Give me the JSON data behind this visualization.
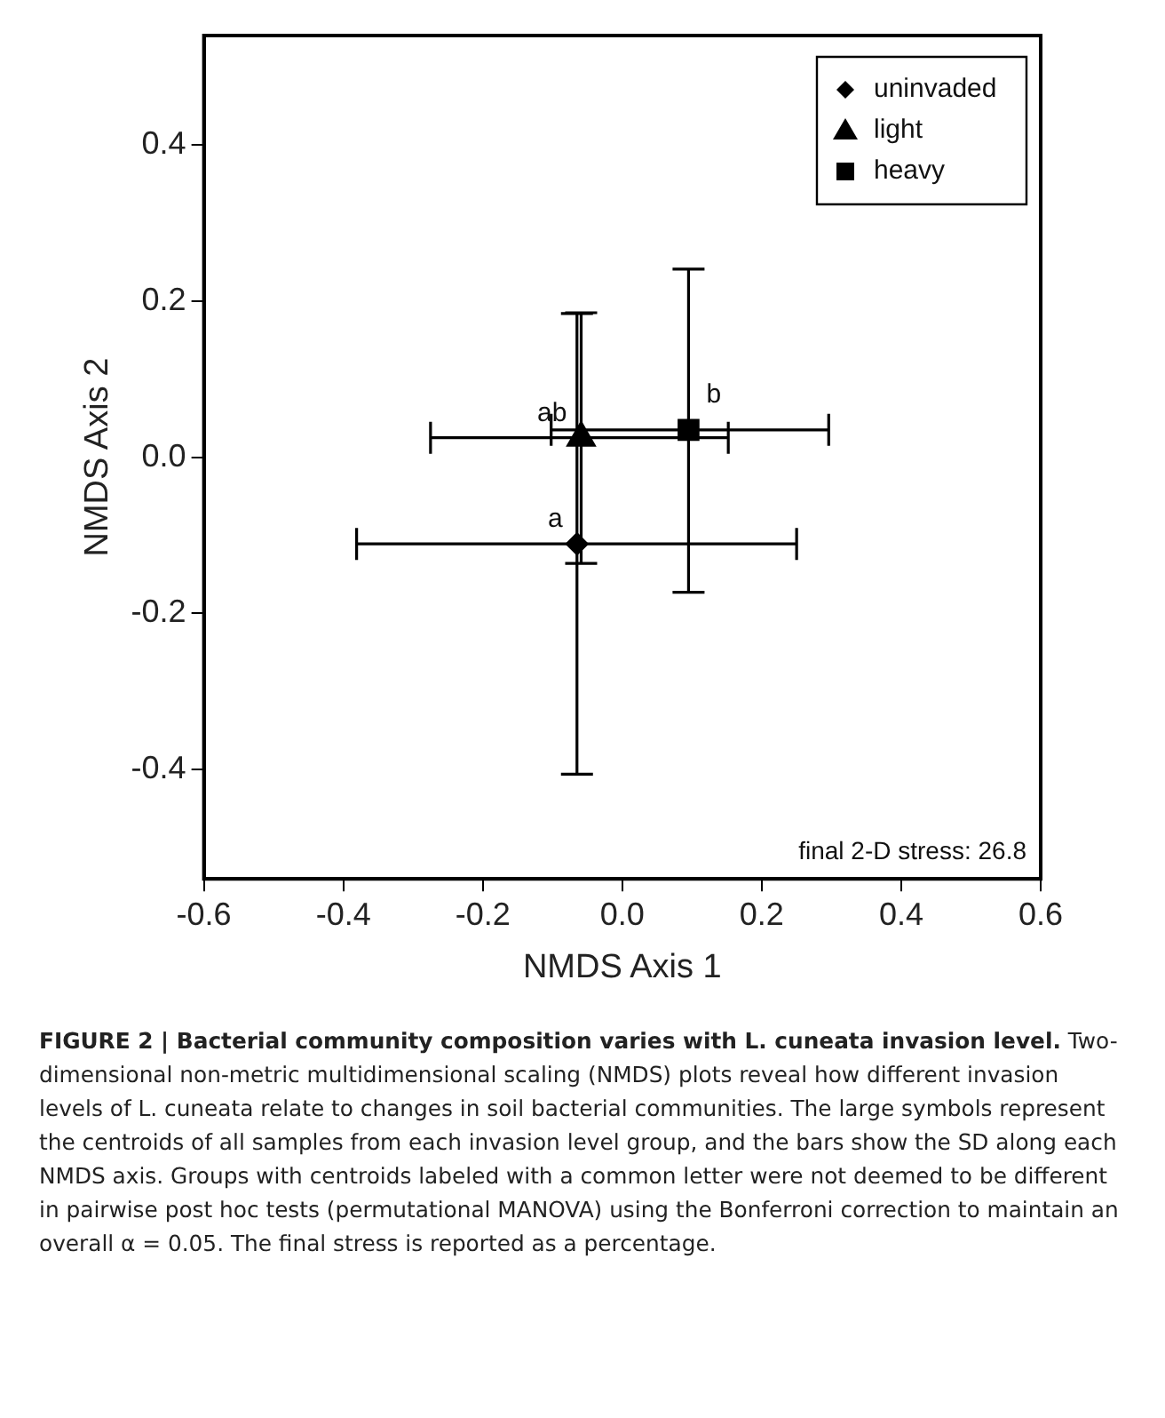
{
  "chart_data": {
    "type": "scatter",
    "title": "FIGURE 2 | Bacterial community composition varies with L. cuneata invasion level.",
    "xlabel": "NMDS Axis 1",
    "ylabel": "NMDS Axis 2",
    "xlim": [
      -0.6,
      0.6
    ],
    "xticks": [
      -0.6,
      -0.4,
      -0.2,
      {
        "value": 0,
        "label": "0.0"
      },
      0.2,
      0.4,
      0.6
    ],
    "ylim": [
      -0.54,
      0.54
    ],
    "yticks": [
      -0.4,
      -0.2,
      {
        "value": 0,
        "label": "0.0"
      },
      0.2,
      0.4
    ],
    "grid": false,
    "legend": "top right",
    "series": [
      {
        "name": "uninvaded",
        "color": "#000000",
        "marker": "diamond",
        "x": [
          -0.065
        ],
        "values": [
          -0.111
        ],
        "errors": [
          [
            -0.406,
            0.184
          ]
        ],
        "xerrors": [
          [
            -0.381,
            0.25
          ]
        ]
      },
      {
        "name": "light",
        "color": "#000000",
        "marker": "triangle",
        "x": [
          -0.059
        ],
        "values": [
          0.025
        ],
        "errors": [
          [
            -0.136,
            0.185
          ]
        ],
        "xerrors": [
          [
            -0.275,
            0.152
          ]
        ]
      },
      {
        "name": "heavy",
        "color": "#000000",
        "marker": "square",
        "x": [
          0.095
        ],
        "values": [
          0.035
        ],
        "errors": [
          [
            -0.173,
            0.241
          ]
        ],
        "xerrors": [
          [
            -0.102,
            0.296
          ]
        ]
      }
    ],
    "annotations": [
      {
        "text": "a",
        "x": -0.065,
        "y": -0.111
      },
      {
        "text": "ab",
        "x": -0.059,
        "y": 0.025
      },
      {
        "text": "b",
        "x": 0.095,
        "y": 0.035
      },
      "final 2-D stress: 26.8",
      "Two-dimensional non-metric multidimensional scaling (NMDS) plots reveal how different invasion levels of L. cuneata relate to changes in soil bacterial communities. The large symbols represent the centroids of all samples from each invasion level group, and the bars show the SD along each NMDS axis. Groups with centroids labeled with a common letter were not deemed to be different in pairwise post hoc tests (permutational MANOVA) using the Bonferroni correction to maintain an overall α = 0.05. The final stress is reported as a percentage."
    ]
  }
}
